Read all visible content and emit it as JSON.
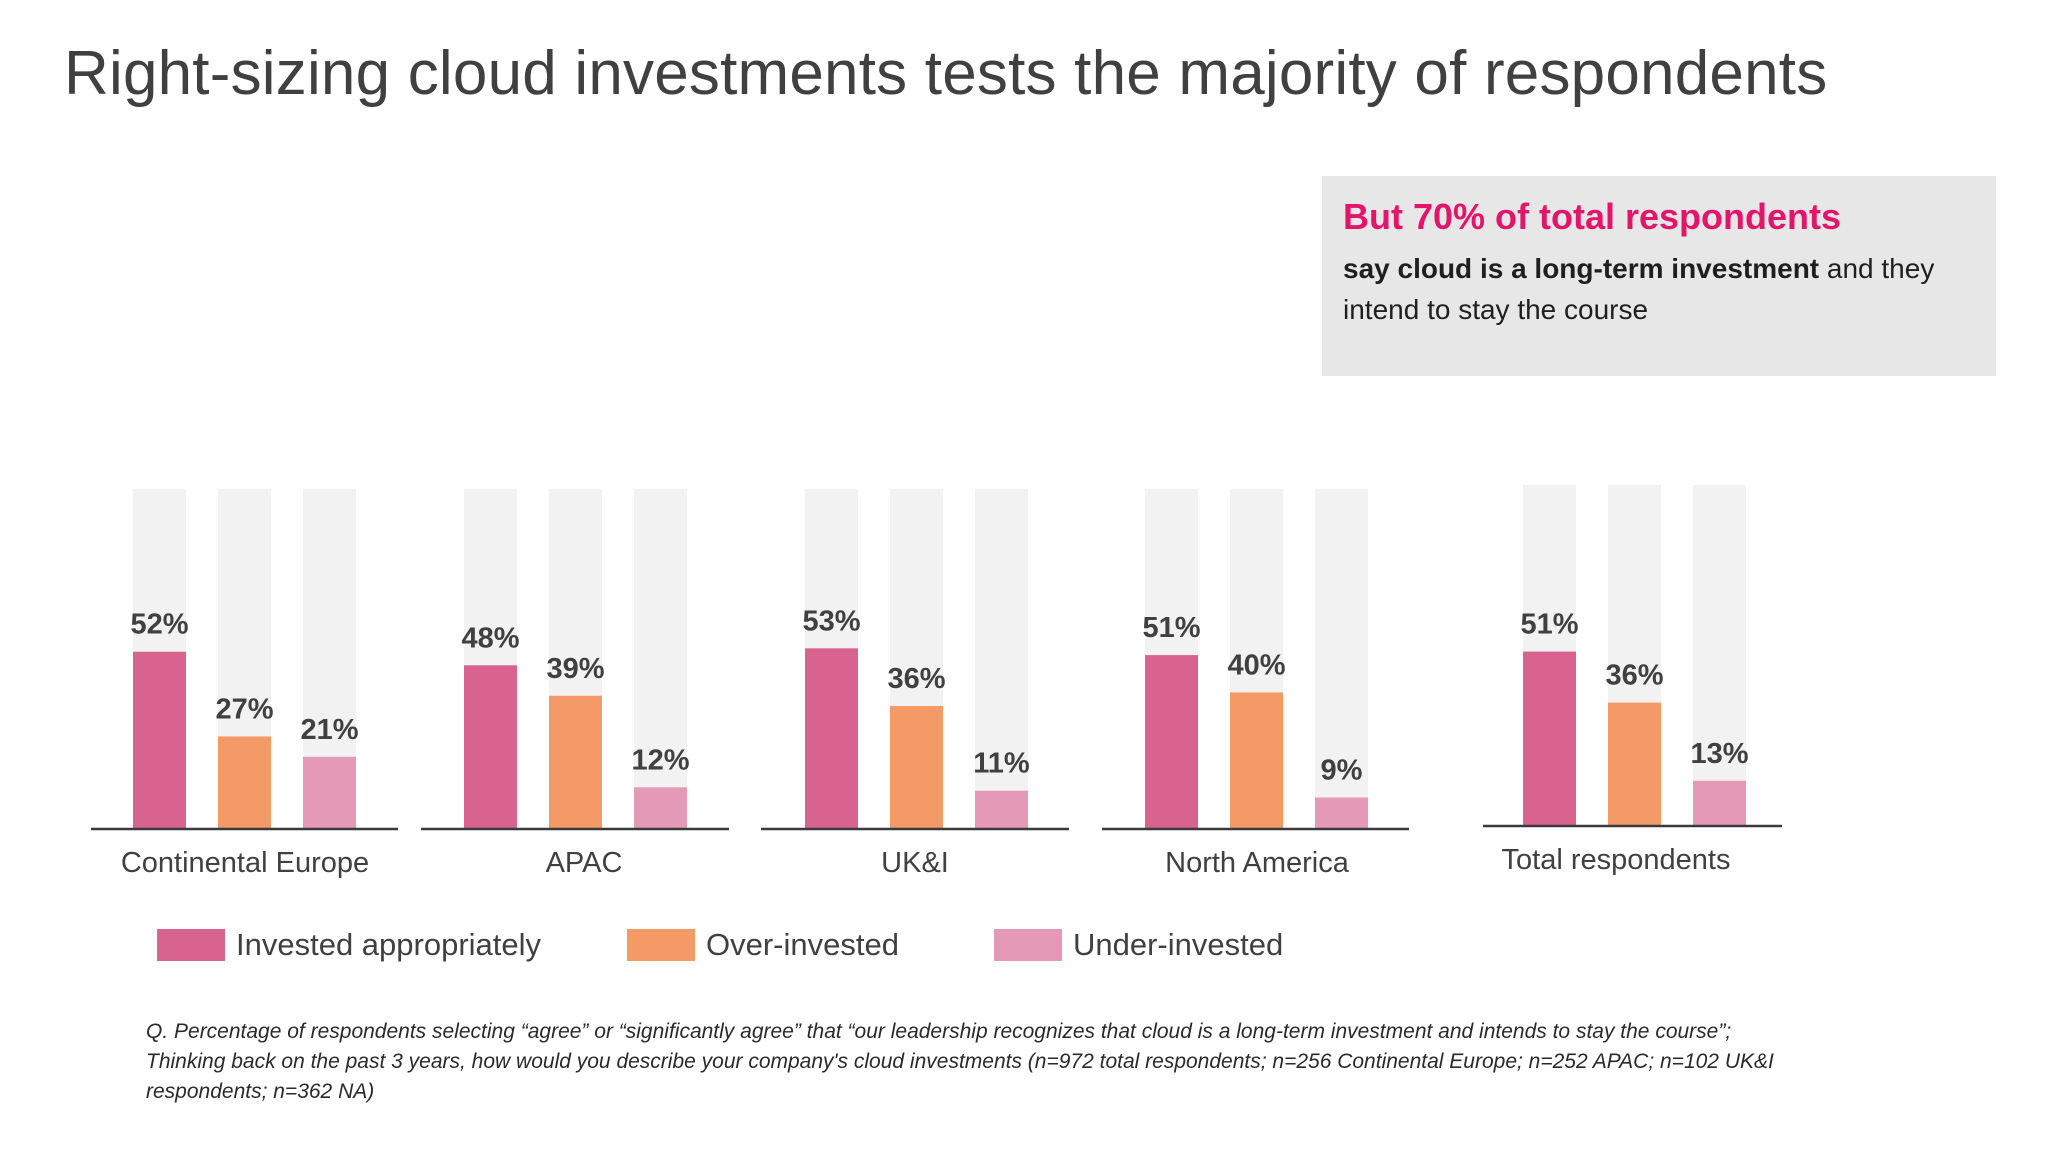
{
  "title": "Right-sizing cloud investments tests the majority of respondents",
  "callout": {
    "headline": "But 70% of total respondents",
    "body_bold": "say cloud is a long-term investment",
    "body_rest": " and they intend to stay the course"
  },
  "colors": {
    "invested_appropriately": "#d9638f",
    "over_invested": "#f39a67",
    "under_invested": "#e49ab6",
    "bar_track": "#f2f2f2",
    "headline_accent": "#e2156b",
    "callout_bg": "#e7e7e8"
  },
  "chart_data": {
    "type": "bar",
    "categories": [
      "Continental Europe",
      "APAC",
      "UK&I",
      "North America",
      "Total respondents"
    ],
    "series": [
      {
        "name": "Invested appropriately",
        "values": [
          52,
          48,
          53,
          51,
          51
        ]
      },
      {
        "name": "Over-invested",
        "values": [
          27,
          39,
          36,
          40,
          36
        ]
      },
      {
        "name": "Under-invested",
        "values": [
          21,
          12,
          11,
          9,
          13
        ]
      }
    ],
    "value_suffix": "%",
    "ylim": [
      0,
      100
    ],
    "grid": false,
    "legend_position": "bottom-left"
  },
  "footnote": "Q. Percentage of respondents selecting “agree” or “significantly agree” that “our leadership recognizes that cloud is a long-term investment and intends to stay the course”; Thinking back on the past 3 years, how would you describe your company's cloud investments (n=972 total respondents; n=256 Continental Europe; n=252 APAC; n=102 UK&I respondents; n=362 NA)"
}
